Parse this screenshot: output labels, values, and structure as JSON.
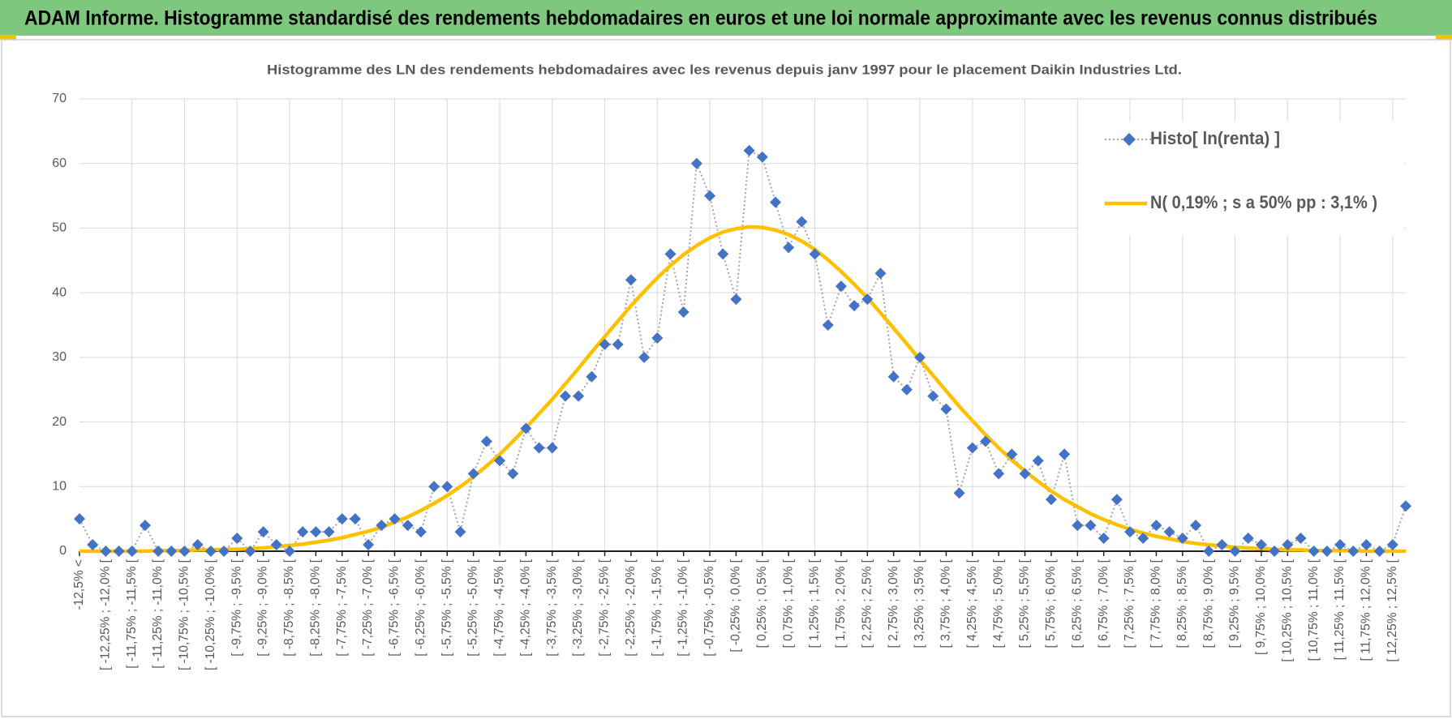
{
  "header": {
    "title": "ADAM Informe. Histogramme standardisé des rendements hebdomadaires en euros et une loi normale approximante avec les revenus connus distribués"
  },
  "chart_data": {
    "type": "line",
    "title": "Histogramme des LN des rendements hebdomadaires avec les revenus depuis janv 1997 pour le placement Daikin Industries Ltd.",
    "categories": [
      "-12,5% <",
      null,
      "[ -12,25% ; -12,0% [",
      null,
      "[ -11,75% ; -11,5% [",
      null,
      "[ -11,25% ; -11,0% [",
      null,
      "[ -10,75% ; -10,5% [",
      null,
      "[ -10,25% ; -10,0% [",
      null,
      "[ -9,75% ; -9,5% [",
      null,
      "[ -9,25% ; -9,0% [",
      null,
      "[ -8,75% ; -8,5% [",
      null,
      "[ -8,25% ; -8,0% [",
      null,
      "[ -7,75% ; -7,5% [",
      null,
      "[ -7,25% ; -7,0% [",
      null,
      "[ -6,75% ; -6,5% [",
      null,
      "[ -6,25% ; -6,0% [",
      null,
      "[ -5,75% ; -5,5% [",
      null,
      "[ -5,25% ; -5,0% [",
      null,
      "[ -4,75% ; -4,5% [",
      null,
      "[ -4,25% ; -4,0% [",
      null,
      "[ -3,75% ; -3,5% [",
      null,
      "[ -3,25% ; -3,0% [",
      null,
      "[ -2,75% ; -2,5% [",
      null,
      "[ -2,25% ; -2,0% [",
      null,
      "[ -1,75% ; -1,5% [",
      null,
      "[ -1,25% ; -1,0% [",
      null,
      "[ -0,75% ; -0,5% [",
      null,
      "[ -0,25% ; 0,0% [",
      null,
      "[ 0,25% ; 0,5% [",
      null,
      "[ 0,75% ; 1,0% [",
      null,
      "[ 1,25% ; 1,5% [",
      null,
      "[ 1,75% ; 2,0% [",
      null,
      "[ 2,25% ; 2,5% [",
      null,
      "[ 2,75% ; 3,0% [",
      null,
      "[ 3,25% ; 3,5% [",
      null,
      "[ 3,75% ; 4,0% [",
      null,
      "[ 4,25% ; 4,5% [",
      null,
      "[ 4,75% ; 5,0% [",
      null,
      "[ 5,25% ; 5,5% [",
      null,
      "[ 5,75% ; 6,0% [",
      null,
      "[ 6,25% ; 6,5% [",
      null,
      "[ 6,75% ; 7,0% [",
      null,
      "[ 7,25% ; 7,5% [",
      null,
      "[ 7,75% ; 8,0% [",
      null,
      "[ 8,25% ; 8,5% [",
      null,
      "[ 8,75% ; 9,0% [",
      null,
      "[ 9,25% ; 9,5% [",
      null,
      "[ 9,75% ; 10,0% [",
      null,
      "[ 10,25% ; 10,5% [",
      null,
      "[ 10,75% ; 11,0% [",
      null,
      "[ 11,25% ; 11,5% [",
      null,
      "[ 11,75% ; 12,0% [",
      null,
      "[ 12,25% ; 12,5% [",
      null
    ],
    "series": [
      {
        "name": "Histo[ ln(renta) ]",
        "color": "#4472c4",
        "values": [
          5,
          1,
          0,
          0,
          0,
          4,
          0,
          0,
          0,
          1,
          0,
          0,
          2,
          0,
          3,
          1,
          0,
          3,
          3,
          3,
          5,
          5,
          1,
          4,
          5,
          4,
          3,
          10,
          10,
          3,
          12,
          17,
          14,
          12,
          19,
          16,
          16,
          24,
          24,
          27,
          32,
          32,
          42,
          30,
          33,
          46,
          37,
          60,
          55,
          46,
          39,
          62,
          61,
          54,
          47,
          51,
          46,
          35,
          41,
          38,
          39,
          43,
          27,
          25,
          30,
          24,
          22,
          9,
          16,
          17,
          12,
          15,
          12,
          14,
          8,
          15,
          4,
          4,
          2,
          8,
          3,
          2,
          4,
          3,
          2,
          4,
          0,
          1,
          0,
          2,
          1,
          0,
          1,
          2,
          0,
          0,
          1,
          0,
          1,
          0,
          1,
          7
        ]
      },
      {
        "name": "N( 0,19% ; s a 50% pp : 3,1% )",
        "color": "#ffc000",
        "values": [
          0.0,
          0.0,
          0.0,
          0.0,
          0.0,
          0.0,
          0.1,
          0.1,
          0.1,
          0.2,
          0.2,
          0.3,
          0.3,
          0.4,
          0.5,
          0.7,
          0.9,
          1.1,
          1.4,
          1.7,
          2.1,
          2.6,
          3.1,
          3.7,
          4.5,
          5.3,
          6.3,
          7.4,
          8.6,
          10.0,
          11.5,
          13.2,
          15.0,
          17.0,
          19.1,
          21.3,
          23.5,
          25.9,
          28.3,
          30.8,
          33.2,
          35.6,
          38.0,
          40.2,
          42.3,
          44.2,
          45.9,
          47.3,
          48.5,
          49.4,
          49.9,
          50.2,
          50.1,
          49.7,
          49.0,
          48.0,
          46.7,
          45.1,
          43.3,
          41.3,
          39.2,
          36.9,
          34.5,
          32.1,
          29.6,
          27.2,
          24.8,
          22.4,
          20.2,
          18.0,
          16.0,
          14.1,
          12.4,
          10.8,
          9.3,
          8.0,
          6.9,
          5.8,
          4.9,
          4.1,
          3.4,
          2.8,
          2.3,
          1.9,
          1.5,
          1.2,
          1.0,
          0.8,
          0.6,
          0.5,
          0.4,
          0.3,
          0.2,
          0.2,
          0.1,
          0.1,
          0.1,
          0.1,
          0.0,
          0.0,
          0.0,
          0.0
        ]
      }
    ],
    "ylim": [
      0,
      70
    ],
    "yticks": [
      0,
      10,
      20,
      30,
      40,
      50,
      60,
      70
    ],
    "grid": true,
    "legend": "top-right"
  }
}
